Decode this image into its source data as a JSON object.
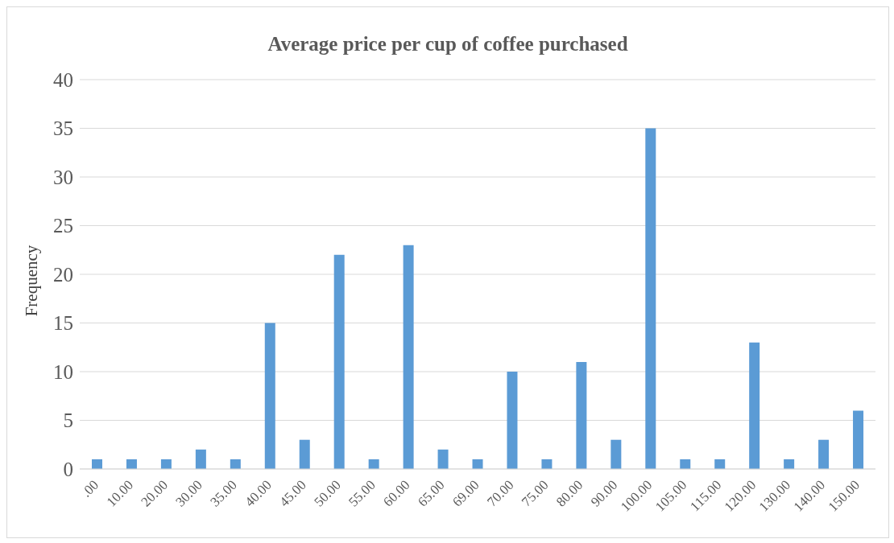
{
  "chart_data": {
    "type": "bar",
    "title": "Average price per cup of coffee purchased",
    "ylabel": "Frequency",
    "categories": [
      ".00",
      "10.00",
      "20.00",
      "30.00",
      "35.00",
      "40.00",
      "45.00",
      "50.00",
      "55.00",
      "60.00",
      "65.00",
      "69.00",
      "70.00",
      "75.00",
      "80.00",
      "90.00",
      "100.00",
      "105.00",
      "115.00",
      "120.00",
      "130.00",
      "140.00",
      "150.00"
    ],
    "values": [
      1,
      1,
      1,
      2,
      1,
      15,
      3,
      22,
      1,
      23,
      2,
      1,
      10,
      1,
      11,
      3,
      35,
      1,
      1,
      13,
      1,
      3,
      6
    ],
    "color": "#5b9bd5",
    "ylim": [
      0,
      40
    ],
    "yticks": [
      0,
      5,
      10,
      15,
      20,
      25,
      30,
      35,
      40
    ],
    "grid": "y"
  }
}
